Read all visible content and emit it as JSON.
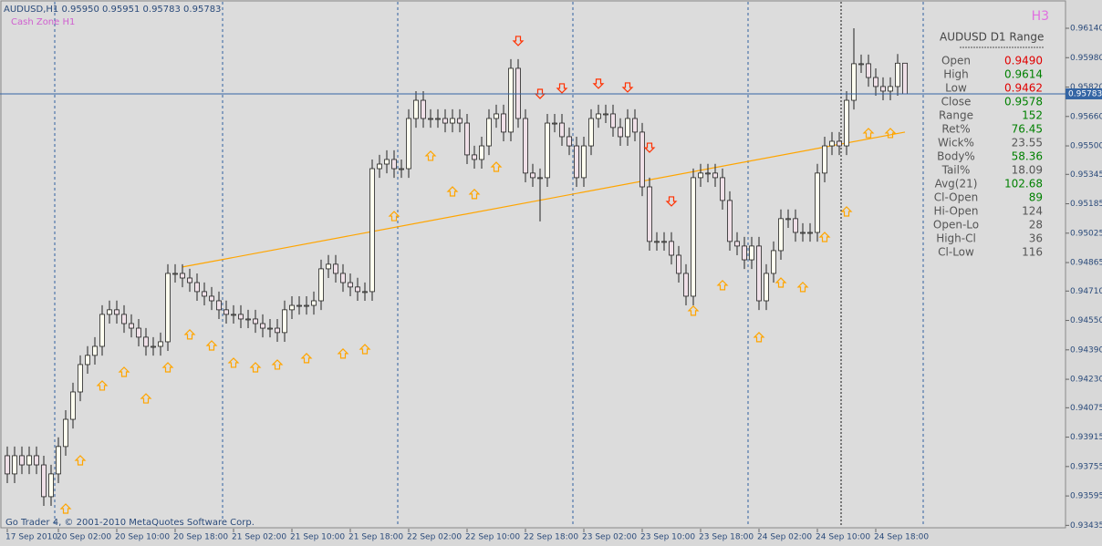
{
  "chart_data": {
    "type": "candlestick",
    "title": "AUDUSD,H1  0.95950 0.95951 0.95783 0.95783",
    "subtitle": "Cash Zone H1",
    "footer": "Go Trader 4, © 2001-2010 MetaQuotes Software Corp.",
    "bull_color": "#fffff0",
    "bear_color": "#f0e0e8",
    "ylim": [
      0.93407,
      0.96269
    ],
    "yticks": [
      {
        "value": 0.9614,
        "label": "0.96140"
      },
      {
        "value": 0.9598,
        "label": "0.95980"
      },
      {
        "value": 0.9582,
        "label": "0.95820"
      },
      {
        "value": 0.9566,
        "label": "0.95660"
      },
      {
        "value": 0.955,
        "label": "0.95500"
      },
      {
        "value": 0.95345,
        "label": "0.95345"
      },
      {
        "value": 0.95185,
        "label": "0.95185"
      },
      {
        "value": 0.95025,
        "label": "0.95025"
      },
      {
        "value": 0.94865,
        "label": "0.94865"
      },
      {
        "value": 0.9471,
        "label": "0.94710"
      },
      {
        "value": 0.9455,
        "label": "0.94550"
      },
      {
        "value": 0.9439,
        "label": "0.94390"
      },
      {
        "value": 0.9423,
        "label": "0.94230"
      },
      {
        "value": 0.94075,
        "label": "0.94075"
      },
      {
        "value": 0.93915,
        "label": "0.93915"
      },
      {
        "value": 0.93755,
        "label": "0.93755"
      },
      {
        "value": 0.93595,
        "label": "0.93595"
      },
      {
        "value": 0.93435,
        "label": "0.93435"
      }
    ],
    "categories": [
      "17 Sep 2010",
      null,
      null,
      null,
      null,
      null,
      null,
      "20 Sep 02:00",
      null,
      null,
      null,
      null,
      null,
      null,
      null,
      "20 Sep 10:00",
      null,
      null,
      null,
      null,
      null,
      null,
      null,
      "20 Sep 18:00",
      null,
      null,
      null,
      null,
      null,
      null,
      null,
      "21 Sep 02:00",
      null,
      null,
      null,
      null,
      null,
      null,
      null,
      "21 Sep 10:00",
      null,
      null,
      null,
      null,
      null,
      null,
      null,
      "21 Sep 18:00",
      null,
      null,
      null,
      null,
      null,
      null,
      null,
      "22 Sep 02:00",
      null,
      null,
      null,
      null,
      null,
      null,
      null,
      "22 Sep 10:00",
      null,
      null,
      null,
      null,
      null,
      null,
      null,
      "22 Sep 18:00",
      null,
      null,
      null,
      null,
      null,
      null,
      null,
      "23 Sep 02:00",
      null,
      null,
      null,
      null,
      null,
      null,
      null,
      "23 Sep 10:00",
      null,
      null,
      null,
      null,
      null,
      null,
      null,
      "23 Sep 18:00",
      null,
      null,
      null,
      null,
      null,
      null,
      null,
      "24 Sep 02:00",
      null,
      null,
      null,
      null,
      null,
      null,
      null,
      "24 Sep 10:00",
      null,
      null,
      null,
      null,
      null,
      null,
      null,
      "24 Sep 18:00",
      null,
      null,
      null,
      null
    ],
    "open": [
      0.93814,
      0.93715,
      0.93814,
      0.93764,
      0.93814,
      0.93764,
      0.93591,
      0.93715,
      0.93864,
      0.94012,
      0.94161,
      0.9431,
      0.9436,
      0.94409,
      0.94583,
      0.94608,
      0.94583,
      0.94533,
      0.94508,
      0.94459,
      0.94409,
      0.94409,
      0.94434,
      0.94806,
      0.94806,
      0.94781,
      0.94756,
      0.94707,
      0.94682,
      0.94657,
      0.94608,
      0.94583,
      0.94583,
      0.94558,
      0.94558,
      0.94533,
      0.94508,
      0.94508,
      0.94484,
      0.94608,
      0.94632,
      0.94632,
      0.94632,
      0.94657,
      0.94831,
      0.94856,
      0.94806,
      0.94756,
      0.94732,
      0.94707,
      0.94707,
      0.95376,
      0.95401,
      0.95426,
      0.95376,
      0.95376,
      0.95649,
      0.95748,
      0.95649,
      0.95649,
      0.95649,
      0.95624,
      0.95649,
      0.95624,
      0.95451,
      0.95426,
      0.955,
      0.95649,
      0.95674,
      0.95575,
      0.95922,
      0.95649,
      0.95352,
      0.95327,
      0.95327,
      0.95624,
      0.95624,
      0.9555,
      0.955,
      0.95327,
      0.955,
      0.95649,
      0.95674,
      0.95674,
      0.956,
      0.9555,
      0.95649,
      0.95575,
      0.95277,
      0.9498,
      0.9498,
      0.9498,
      0.94905,
      0.94806,
      0.94682,
      0.95327,
      0.95352,
      0.95352,
      0.95327,
      0.95203,
      0.9498,
      0.94955,
      0.9488,
      0.94955,
      0.94657,
      0.94806,
      0.9493,
      0.95104,
      0.95104,
      0.95029,
      0.95029,
      0.95029,
      0.95352,
      0.955,
      0.95525,
      0.955,
      0.95748,
      0.95947,
      0.95947,
      0.95872,
      0.95823,
      0.95798,
      0.95823,
      0.9595
    ],
    "high": [
      0.93864,
      0.93864,
      0.93864,
      0.93864,
      0.93864,
      0.93814,
      0.93765,
      0.93914,
      0.94062,
      0.94211,
      0.9436,
      0.9441,
      0.94459,
      0.94633,
      0.94658,
      0.94658,
      0.94633,
      0.94583,
      0.94558,
      0.94509,
      0.94459,
      0.94484,
      0.94856,
      0.94856,
      0.94856,
      0.94831,
      0.94806,
      0.94757,
      0.94732,
      0.94707,
      0.94658,
      0.94633,
      0.94633,
      0.94608,
      0.94608,
      0.94583,
      0.94558,
      0.94558,
      0.94658,
      0.94682,
      0.94682,
      0.94682,
      0.94707,
      0.94881,
      0.94906,
      0.94906,
      0.94856,
      0.94806,
      0.94782,
      0.94757,
      0.95426,
      0.95451,
      0.95476,
      0.95476,
      0.95426,
      0.95699,
      0.95798,
      0.95798,
      0.95699,
      0.95699,
      0.95699,
      0.95699,
      0.95699,
      0.95674,
      0.95501,
      0.9555,
      0.95699,
      0.95724,
      0.95724,
      0.95972,
      0.95972,
      0.95699,
      0.95402,
      0.95377,
      0.95674,
      0.95674,
      0.95674,
      0.956,
      0.9555,
      0.9555,
      0.95699,
      0.95724,
      0.95724,
      0.95724,
      0.9565,
      0.95699,
      0.95699,
      0.95625,
      0.95327,
      0.9503,
      0.9503,
      0.9503,
      0.94955,
      0.94856,
      0.95377,
      0.95402,
      0.95402,
      0.95402,
      0.95377,
      0.95253,
      0.9503,
      0.95005,
      0.95005,
      0.95005,
      0.94856,
      0.9498,
      0.95154,
      0.95154,
      0.95154,
      0.95079,
      0.95079,
      0.95402,
      0.9555,
      0.95575,
      0.95575,
      0.95798,
      0.9614,
      0.95997,
      0.95997,
      0.95922,
      0.95873,
      0.95873,
      0.96,
      0.95951
    ],
    "low": [
      0.93665,
      0.93665,
      0.93714,
      0.93714,
      0.93714,
      0.93541,
      0.93541,
      0.93665,
      0.93814,
      0.93962,
      0.94111,
      0.9426,
      0.9431,
      0.94359,
      0.94533,
      0.94533,
      0.94483,
      0.94458,
      0.94409,
      0.94359,
      0.94359,
      0.94359,
      0.94384,
      0.94756,
      0.94731,
      0.94706,
      0.94657,
      0.94632,
      0.94607,
      0.94558,
      0.94533,
      0.94533,
      0.94508,
      0.94508,
      0.94483,
      0.94458,
      0.94458,
      0.94434,
      0.94434,
      0.94558,
      0.94582,
      0.94582,
      0.94582,
      0.94607,
      0.94781,
      0.94756,
      0.94706,
      0.94682,
      0.94657,
      0.94657,
      0.94657,
      0.95326,
      0.95351,
      0.95326,
      0.95326,
      0.95326,
      0.95599,
      0.95599,
      0.95599,
      0.95599,
      0.95574,
      0.95574,
      0.95574,
      0.95401,
      0.95376,
      0.95376,
      0.9545,
      0.95599,
      0.95525,
      0.95525,
      0.95599,
      0.95302,
      0.95277,
      0.95089,
      0.95277,
      0.95574,
      0.955,
      0.9545,
      0.95277,
      0.95277,
      0.9545,
      0.95599,
      0.95624,
      0.9555,
      0.955,
      0.955,
      0.95525,
      0.95227,
      0.9493,
      0.9493,
      0.9493,
      0.94855,
      0.94756,
      0.94632,
      0.94632,
      0.95277,
      0.95302,
      0.95277,
      0.95153,
      0.9493,
      0.94905,
      0.9483,
      0.9483,
      0.94607,
      0.94607,
      0.94756,
      0.9488,
      0.95054,
      0.94979,
      0.94979,
      0.94979,
      0.94979,
      0.95302,
      0.9545,
      0.9545,
      0.9545,
      0.95698,
      0.95897,
      0.95822,
      0.95773,
      0.95748,
      0.95748,
      0.95773,
      0.95783
    ],
    "close": [
      0.93715,
      0.93814,
      0.93764,
      0.93814,
      0.93764,
      0.93591,
      0.93715,
      0.93864,
      0.94012,
      0.94161,
      0.9431,
      0.9436,
      0.94409,
      0.94583,
      0.94608,
      0.94583,
      0.94533,
      0.94508,
      0.94459,
      0.94409,
      0.94409,
      0.94434,
      0.94806,
      0.94806,
      0.94781,
      0.94756,
      0.94707,
      0.94682,
      0.94657,
      0.94608,
      0.94583,
      0.94583,
      0.94558,
      0.94558,
      0.94533,
      0.94508,
      0.94508,
      0.94484,
      0.94608,
      0.94632,
      0.94632,
      0.94632,
      0.94657,
      0.94831,
      0.94856,
      0.94806,
      0.94756,
      0.94732,
      0.94707,
      0.94707,
      0.95376,
      0.95401,
      0.95426,
      0.95376,
      0.95376,
      0.95649,
      0.95748,
      0.95649,
      0.95649,
      0.95649,
      0.95624,
      0.95649,
      0.95624,
      0.95451,
      0.95426,
      0.955,
      0.95649,
      0.95674,
      0.95575,
      0.95922,
      0.95649,
      0.95352,
      0.95327,
      0.95327,
      0.95624,
      0.95624,
      0.9555,
      0.955,
      0.95327,
      0.955,
      0.95649,
      0.95674,
      0.95674,
      0.956,
      0.9555,
      0.95649,
      0.95575,
      0.95277,
      0.9498,
      0.9498,
      0.9498,
      0.94905,
      0.94806,
      0.94682,
      0.95327,
      0.95352,
      0.95352,
      0.95327,
      0.95203,
      0.9498,
      0.94955,
      0.9488,
      0.94955,
      0.94657,
      0.94806,
      0.9493,
      0.95104,
      0.95104,
      0.95029,
      0.95029,
      0.95029,
      0.95352,
      0.955,
      0.95525,
      0.955,
      0.95748,
      0.95947,
      0.95947,
      0.95872,
      0.95823,
      0.95798,
      0.95823,
      0.9595,
      0.95783
    ],
    "trendline": {
      "color": "#ffa500",
      "x": [
        24,
        123
      ],
      "values": [
        0.94841,
        0.95575
      ]
    },
    "up_arrows": {
      "color": "#ffa500",
      "x": [
        8,
        10,
        13,
        16,
        19,
        22,
        25,
        28,
        31,
        34,
        37,
        41,
        46,
        49,
        53,
        58,
        61,
        64,
        67,
        94,
        98,
        103,
        106,
        109,
        112,
        115,
        118,
        121
      ],
      "values": [
        0.93526,
        0.93789,
        0.94196,
        0.9427,
        0.94126,
        0.94295,
        0.94474,
        0.94414,
        0.9432,
        0.94295,
        0.9431,
        0.94345,
        0.9437,
        0.94394,
        0.95118,
        0.95446,
        0.95252,
        0.95238,
        0.95386,
        0.94603,
        0.94742,
        0.94459,
        0.94756,
        0.94732,
        0.95004,
        0.95143,
        0.9557,
        0.9557
      ]
    },
    "down_arrows": {
      "color": "#ff3000",
      "x": [
        70,
        73,
        76,
        81,
        85,
        88,
        91
      ],
      "values": [
        0.96071,
        0.95783,
        0.95813,
        0.95838,
        0.95818,
        0.9549,
        0.95198
      ]
    },
    "panel": {
      "badge": "H3",
      "title": "AUDUSD D1 Range",
      "rows": [
        {
          "label": "Open",
          "value": "0.9490",
          "color": "#e00000"
        },
        {
          "label": "High",
          "value": "0.9614",
          "color": "#008000"
        },
        {
          "label": "Low",
          "value": "0.9462",
          "color": "#e00000"
        },
        {
          "label": "Close",
          "value": "0.9578",
          "color": "#008000"
        },
        {
          "label": "Range",
          "value": "152",
          "color": "#008000"
        },
        {
          "label": "Ret%",
          "value": "76.45",
          "color": "#008000"
        },
        {
          "label": "Wick%",
          "value": "23.55",
          "color": "#555555"
        },
        {
          "label": "Body%",
          "value": "58.36",
          "color": "#008000"
        },
        {
          "label": "Tail%",
          "value": "18.09",
          "color": "#555555"
        },
        {
          "label": "Avg(21)",
          "value": "102.68",
          "color": "#008000"
        },
        {
          "label": "Cl-Open",
          "value": "89",
          "color": "#008000"
        },
        {
          "label": "Hi-Open",
          "value": "124",
          "color": "#555555"
        },
        {
          "label": "Open-Lo",
          "value": "28",
          "color": "#555555"
        },
        {
          "label": "High-Cl",
          "value": "36",
          "color": "#555555"
        },
        {
          "label": "Cl-Low",
          "value": "116",
          "color": "#555555"
        }
      ]
    }
  }
}
